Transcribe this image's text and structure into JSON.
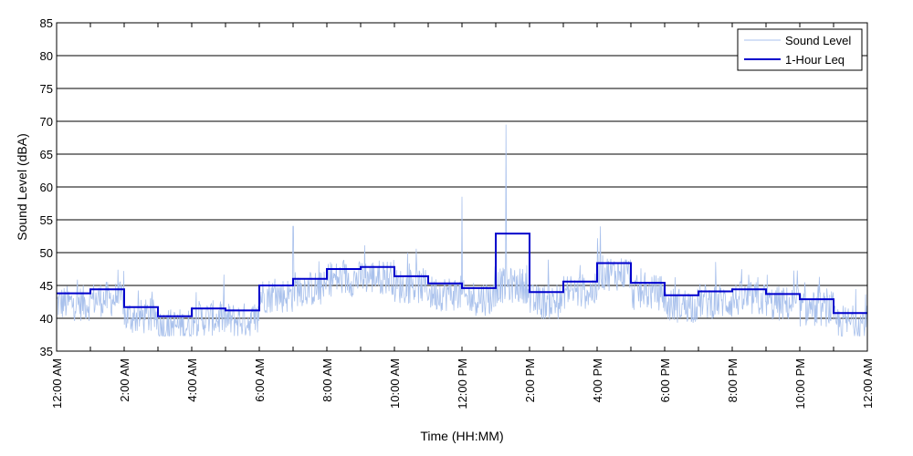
{
  "chart_data": {
    "type": "line",
    "xlabel": "Time (HH:MM)",
    "ylabel": "Sound Level (dBA)",
    "ylim": [
      35,
      85
    ],
    "xlim_hours": [
      0,
      24
    ],
    "y_ticks": [
      35,
      40,
      45,
      50,
      55,
      60,
      65,
      70,
      75,
      80,
      85
    ],
    "x_tick_labels": [
      "12:00 AM",
      "2:00 AM",
      "4:00 AM",
      "6:00 AM",
      "8:00 AM",
      "10:00 AM",
      "12:00 PM",
      "2:00 PM",
      "4:00 PM",
      "6:00 PM",
      "8:00 PM",
      "10:00 PM",
      "12:00 AM"
    ],
    "x_tick_hours": [
      0,
      2,
      4,
      6,
      8,
      10,
      12,
      14,
      16,
      18,
      20,
      22,
      24
    ],
    "grid": "horizontal",
    "legend_position": "top-right",
    "legend": [
      "Sound Level",
      "1-Hour Leq"
    ],
    "series": [
      {
        "name": "Sound Level",
        "color": "#a9c1ec",
        "style": "thin line (1-second/short-interval sound level samples)",
        "peaks": [
          {
            "hour": 7.0,
            "value": 54
          },
          {
            "hour": 12.0,
            "value": 58.5
          },
          {
            "hour": 13.3,
            "value": 69.5
          },
          {
            "hour": 16.1,
            "value": 54
          }
        ]
      },
      {
        "name": "1-Hour Leq",
        "color": "#0000cc",
        "style": "thick step line",
        "hours": [
          0,
          1,
          2,
          3,
          4,
          5,
          6,
          7,
          8,
          9,
          10,
          11,
          12,
          13,
          14,
          15,
          16,
          17,
          18,
          19,
          20,
          21,
          22,
          23
        ],
        "values": [
          43.8,
          44.4,
          41.7,
          40.3,
          41.5,
          41.2,
          45.0,
          46.0,
          47.5,
          47.8,
          46.4,
          45.3,
          44.6,
          52.9,
          44.0,
          45.6,
          48.4,
          45.4,
          43.5,
          44.1,
          44.4,
          43.7,
          42.9,
          40.8
        ]
      }
    ]
  }
}
